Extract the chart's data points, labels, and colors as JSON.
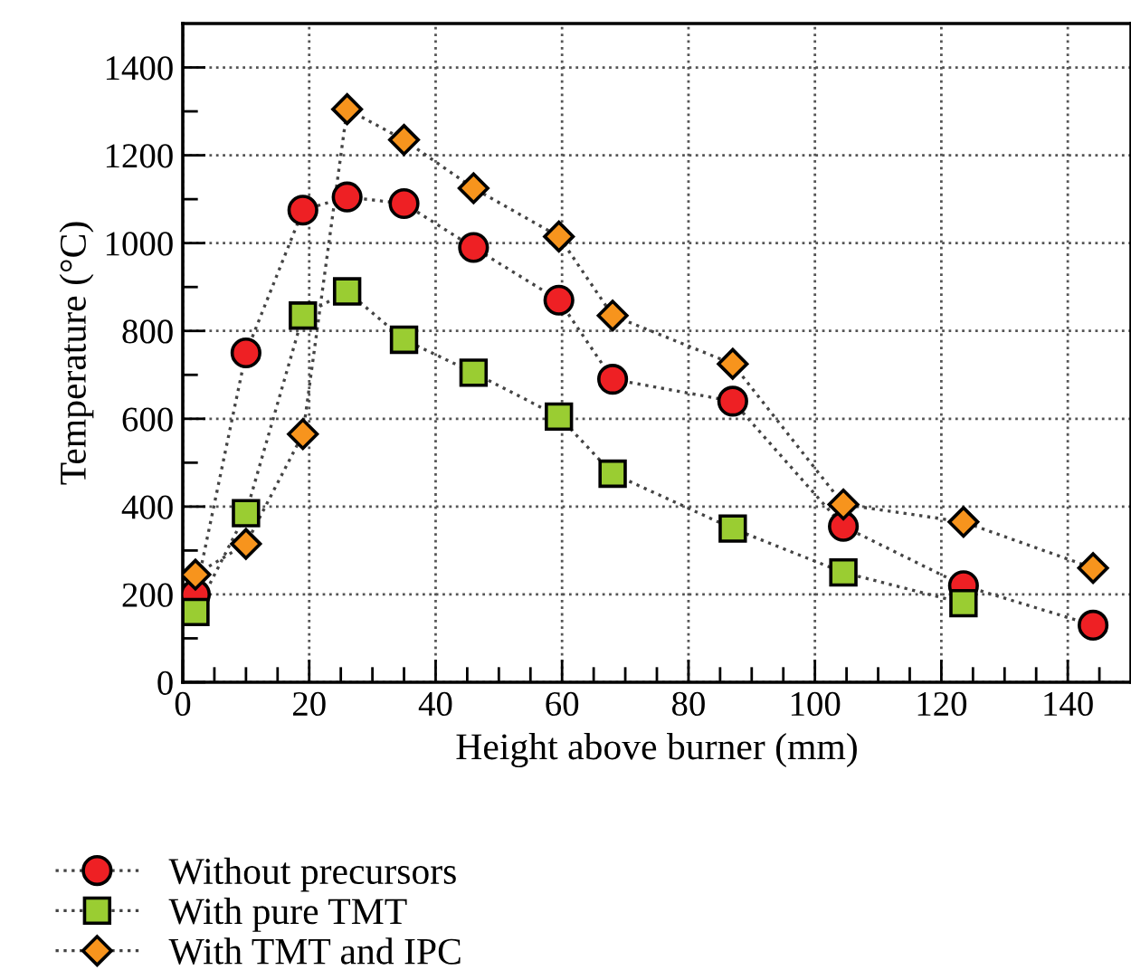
{
  "chart_data": {
    "type": "line",
    "xlabel": "Height above burner (mm)",
    "ylabel": "Temperature (°C)",
    "xlim": [
      0,
      150
    ],
    "ylim": [
      0,
      1500
    ],
    "xticks": [
      0,
      {
        "value": 5,
        "label": null
      },
      20,
      {
        "value": 10,
        "label": null
      },
      {
        "value": 15,
        "label": null
      },
      {
        "value": 25,
        "label": null
      },
      {
        "value": 30,
        "label": null
      },
      {
        "value": 35,
        "label": null
      },
      40,
      {
        "value": 45,
        "label": null
      },
      {
        "value": 50,
        "label": null
      },
      {
        "value": 55,
        "label": null
      },
      60,
      {
        "value": 65,
        "label": null
      },
      {
        "value": 70,
        "label": null
      },
      {
        "value": 75,
        "label": null
      },
      80,
      {
        "value": 85,
        "label": null
      },
      {
        "value": 90,
        "label": null
      },
      {
        "value": 95,
        "label": null
      },
      100,
      {
        "value": 105,
        "label": null
      },
      {
        "value": 110,
        "label": null
      },
      {
        "value": 115,
        "label": null
      },
      120,
      {
        "value": 125,
        "label": null
      },
      {
        "value": 130,
        "label": null
      },
      {
        "value": 135,
        "label": null
      },
      140,
      {
        "value": 145,
        "label": null
      }
    ],
    "yticks": [
      0,
      {
        "value": 100,
        "label": null
      },
      200,
      {
        "value": 300,
        "label": null
      },
      400,
      {
        "value": 500,
        "label": null
      },
      600,
      {
        "value": 700,
        "label": null
      },
      800,
      {
        "value": 900,
        "label": null
      },
      1000,
      {
        "value": 1100,
        "label": null
      },
      1200,
      {
        "value": 1300,
        "label": null
      },
      1400
    ],
    "grid": true,
    "legend": "bottom",
    "line_style": "dotted",
    "series": [
      {
        "name": "Without precursors",
        "color": "#ee2024",
        "marker": "circle",
        "x": [
          2,
          10,
          19,
          26,
          35,
          46,
          59.5,
          68,
          87,
          104.5,
          123.5,
          144
        ],
        "values": [
          200,
          750,
          1075,
          1105,
          1090,
          990,
          870,
          690,
          640,
          355,
          220,
          130
        ]
      },
      {
        "name": "With pure TMT",
        "color": "#9acd32",
        "marker": "square",
        "x": [
          2,
          10,
          19,
          26,
          35,
          46,
          59.5,
          68,
          87,
          104.5,
          123.5
        ],
        "values": [
          160,
          385,
          835,
          890,
          780,
          705,
          605,
          475,
          350,
          250,
          180
        ]
      },
      {
        "name": "With TMT and IPC",
        "color": "#f7941d",
        "marker": "diamond",
        "x": [
          2,
          10,
          19,
          26,
          35,
          46,
          59.5,
          68,
          87,
          104.5,
          123.5,
          144
        ],
        "values": [
          245,
          315,
          565,
          1305,
          1235,
          1125,
          1015,
          835,
          725,
          405,
          365,
          260
        ]
      }
    ]
  }
}
